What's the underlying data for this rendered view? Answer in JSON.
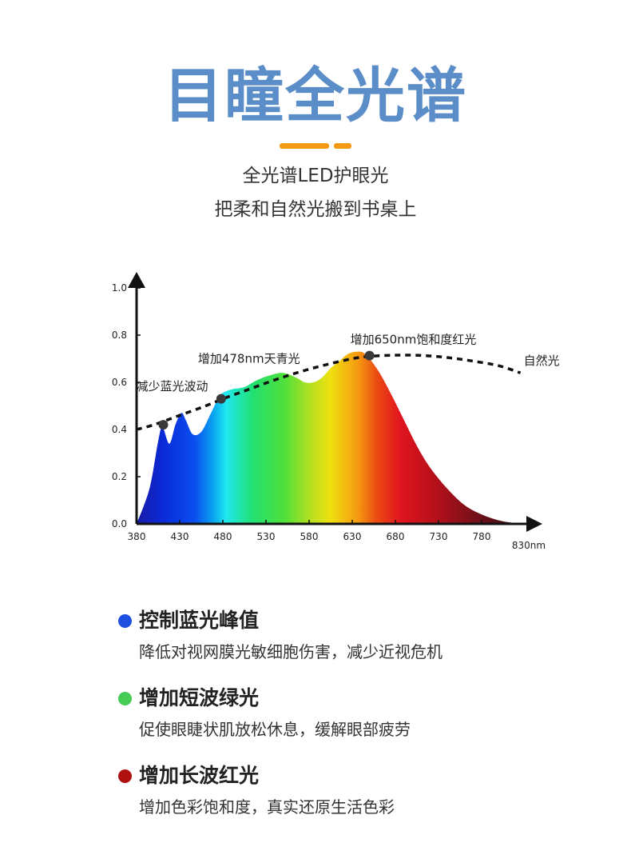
{
  "header": {
    "title": "目瞳全光谱",
    "subtitle_line1": "全光谱LED护眼光",
    "subtitle_line2": "把柔和自然光搬到书桌上"
  },
  "colors": {
    "title": "#5b8ec8",
    "divider": "#f39a12",
    "blue_dot": "#1d4fe0",
    "green_dot": "#45cc55",
    "red_dot": "#b01010"
  },
  "chart_data": {
    "type": "area",
    "x_tick_labels": [
      "380",
      "430",
      "480",
      "530",
      "580",
      "630",
      "680",
      "730",
      "780",
      "830nm"
    ],
    "y_tick_labels": [
      "0.0",
      "0.2",
      "0.4",
      "0.6",
      "0.8",
      "1.0"
    ],
    "xlim": [
      380,
      830
    ],
    "ylim": [
      0,
      1.0
    ],
    "series": [
      {
        "type": "area",
        "x": [
          380,
          395,
          405,
          410,
          418,
          425,
          432,
          437,
          445,
          455,
          465,
          473,
          478,
          490,
          505,
          520,
          535,
          550,
          565,
          575,
          585,
          595,
          605,
          615,
          625,
          635,
          645,
          660,
          675,
          690,
          705,
          720,
          740,
          760,
          780,
          800,
          815,
          830
        ],
        "y": [
          0.0,
          0.15,
          0.35,
          0.41,
          0.34,
          0.42,
          0.47,
          0.44,
          0.38,
          0.39,
          0.46,
          0.52,
          0.55,
          0.57,
          0.58,
          0.61,
          0.63,
          0.64,
          0.62,
          0.6,
          0.6,
          0.62,
          0.66,
          0.69,
          0.72,
          0.73,
          0.72,
          0.65,
          0.55,
          0.44,
          0.33,
          0.24,
          0.15,
          0.08,
          0.04,
          0.015,
          0.005,
          0.0
        ]
      },
      {
        "name": "自然光",
        "type": "line",
        "style": "dashed",
        "x": [
          380,
          400,
          430,
          460,
          480,
          510,
          540,
          570,
          600,
          630,
          650,
          680,
          710,
          740,
          770,
          800,
          825
        ],
        "y": [
          0.4,
          0.42,
          0.46,
          0.5,
          0.53,
          0.57,
          0.61,
          0.645,
          0.675,
          0.7,
          0.71,
          0.715,
          0.714,
          0.705,
          0.69,
          0.67,
          0.64
        ]
      }
    ],
    "annotations": [
      {
        "text": "减少蓝光波动",
        "x": 411,
        "y": 0.42
      },
      {
        "text": "增加478nm天青光",
        "x": 478,
        "y": 0.53
      },
      {
        "text": "增加650nm饱和度红光",
        "x": 650,
        "y": 0.713
      }
    ]
  },
  "features": [
    {
      "title": "控制蓝光峰值",
      "desc": "降低对视网膜光敏细胞伤害，减少近视危机",
      "dot_color": "#1d4fe0"
    },
    {
      "title": "增加短波绿光",
      "desc": "促使眼睫状肌放松休息，缓解眼部疲劳",
      "dot_color": "#45cc55"
    },
    {
      "title": "增加长波红光",
      "desc": "增加色彩饱和度，真实还原生活色彩",
      "dot_color": "#b01010"
    }
  ]
}
